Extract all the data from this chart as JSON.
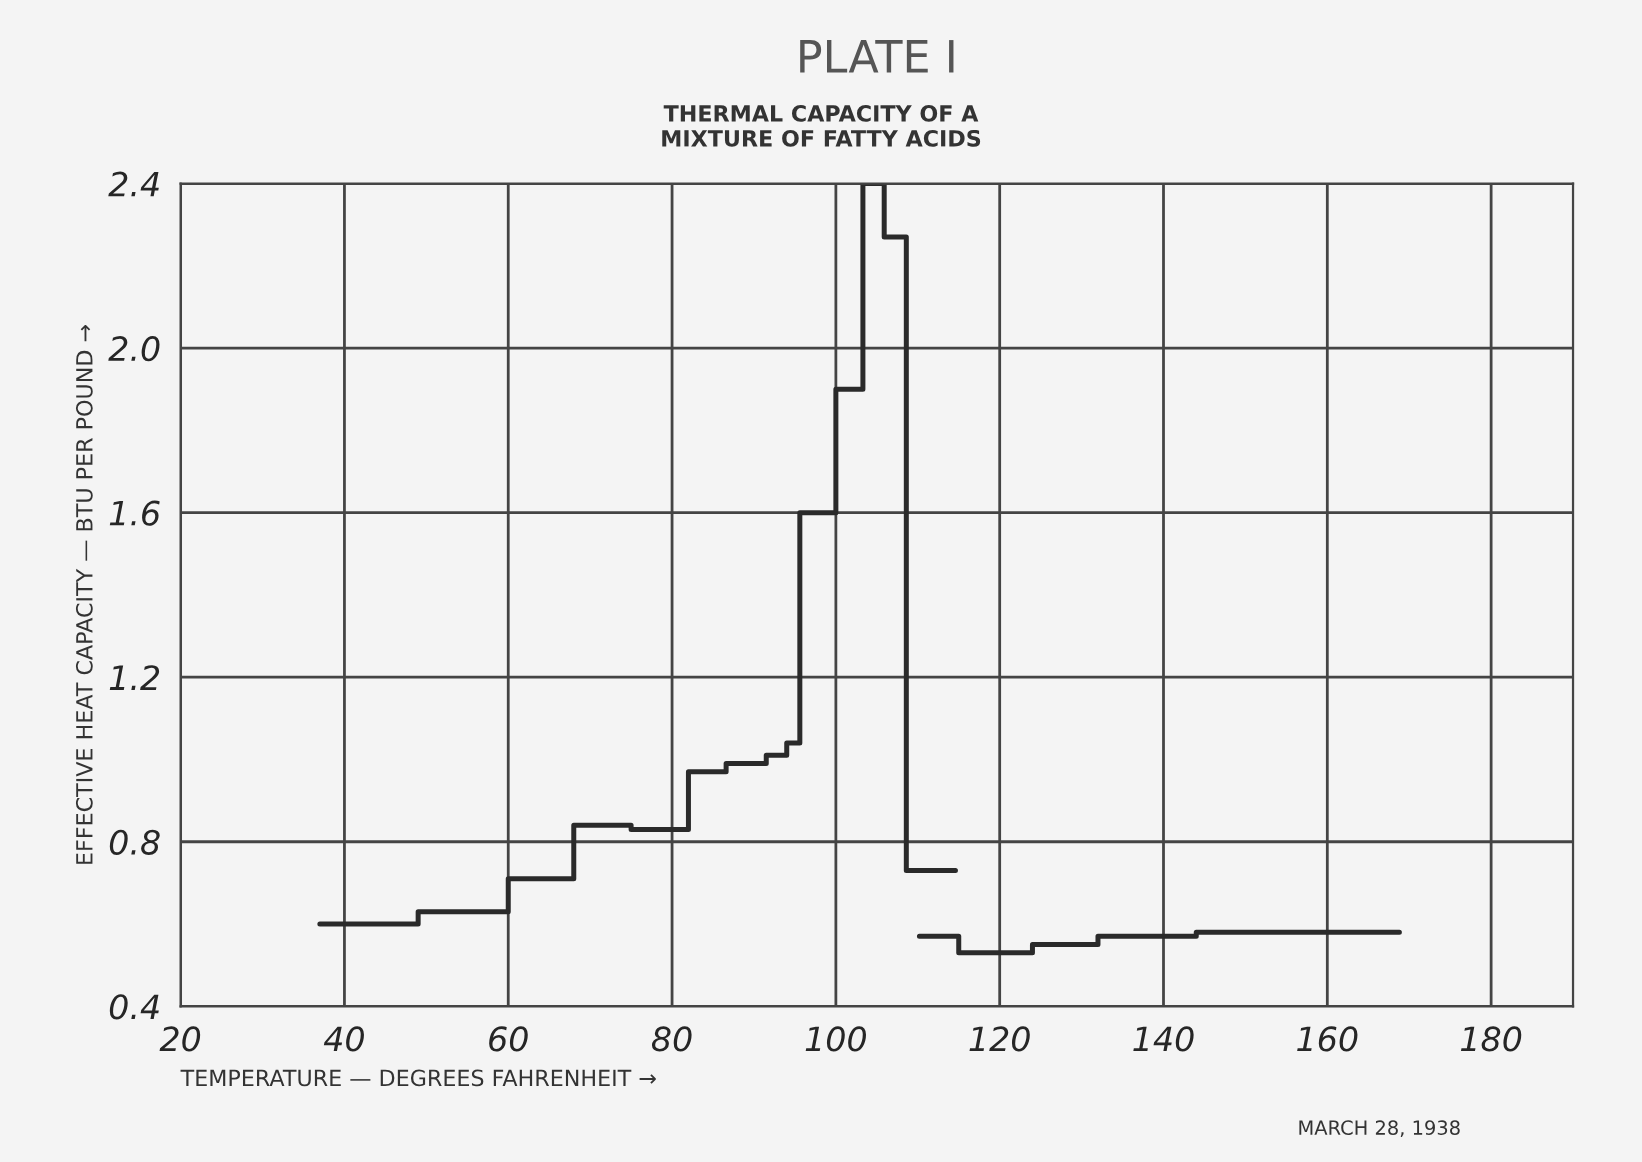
{
  "chart_data": {
    "type": "step",
    "title": "PLATE I",
    "subtitle": "THERMAL CAPACITY OF A\nMIXTURE OF FATTY ACIDS",
    "xlabel": "TEMPERATURE — DEGREES FAHRENHEIT →",
    "ylabel": "EFFECTIVE HEAT CAPACITY — BTU PER POUND →",
    "series": [
      {
        "color": "#2a2a2a",
        "x": [
          37,
          49,
          60,
          68,
          75,
          82,
          86.6,
          91.5,
          94,
          95.6,
          100,
          103.3,
          105.9,
          108.6,
          114.6
        ],
        "values": [
          0.6,
          0.63,
          0.71,
          0.84,
          0.83,
          0.97,
          0.99,
          1.01,
          1.04,
          1.6,
          1.9,
          2.4,
          2.27,
          0.73,
          0.73
        ]
      },
      {
        "color": "#2a2a2a",
        "x": [
          110.2,
          115,
          124,
          132,
          144,
          168.8
        ],
        "values": [
          0.57,
          0.53,
          0.55,
          0.57,
          0.58,
          0.58
        ]
      }
    ],
    "xlim": [
      20,
      190
    ],
    "ylim": [
      0.4,
      2.4
    ],
    "xticks": [
      20,
      40,
      60,
      80,
      100,
      120,
      140,
      160,
      180
    ],
    "yticks": [
      0.4,
      0.8,
      1.2,
      1.6,
      {
        "value": 2,
        "label": "2.0"
      },
      2.4
    ],
    "grid": true,
    "marker": "none",
    "line_style": "solid",
    "annotations": [
      "MARCH 28, 1938"
    ]
  }
}
